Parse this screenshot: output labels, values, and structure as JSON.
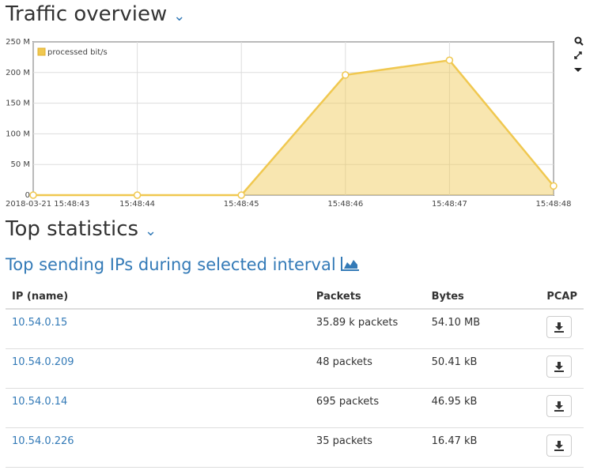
{
  "header": {
    "title": "Traffic overview"
  },
  "chart_data": {
    "type": "area",
    "x": [
      "2018-03-21 15:48:43",
      "15:48:44",
      "15:48:45",
      "15:48:46",
      "15:48:47",
      "15:48:48"
    ],
    "series": [
      {
        "name": "processed bit/s",
        "color": "#f0c850",
        "values": [
          0,
          0,
          0,
          196000000,
          220000000,
          15000000
        ]
      }
    ],
    "ylim": [
      0,
      250000000
    ],
    "yticks": [
      0,
      {
        "value": 50000000,
        "label": "50 M"
      },
      {
        "value": 100000000,
        "label": "100 M"
      },
      {
        "value": 150000000,
        "label": "150 M"
      },
      {
        "value": 200000000,
        "label": "200 M"
      },
      {
        "value": 250000000,
        "label": "250 M"
      }
    ],
    "grid": true,
    "legend": "upper-left"
  },
  "section": {
    "title": "Top statistics"
  },
  "table": {
    "title": "Top sending IPs during selected interval",
    "columns": [
      "IP (name)",
      "Packets",
      "Bytes",
      "PCAP"
    ],
    "rows": [
      [
        "10.54.0.15",
        "35.89 k packets",
        "54.10 MB"
      ],
      [
        "10.54.0.209",
        "48 packets",
        "50.41 kB"
      ],
      [
        "10.54.0.14",
        "695 packets",
        "46.95 kB"
      ],
      [
        "10.54.0.226",
        "35 packets",
        "16.47 kB"
      ]
    ]
  }
}
